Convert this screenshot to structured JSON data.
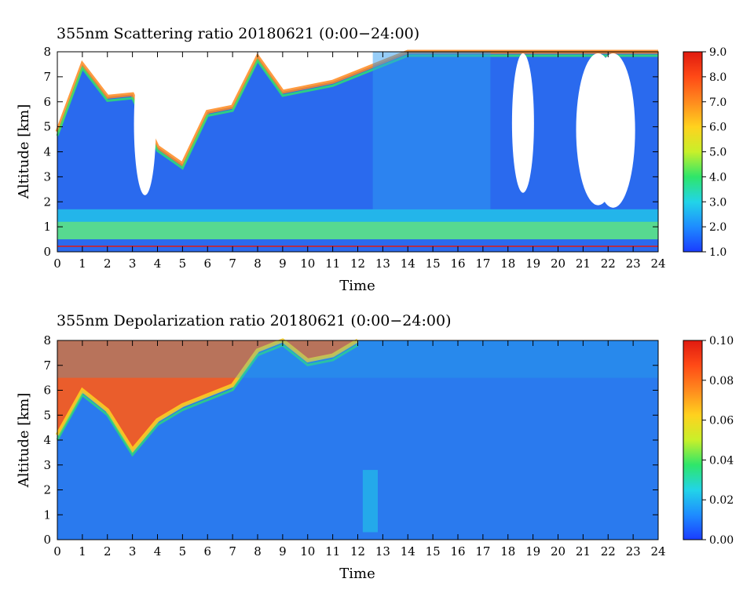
{
  "chart_data": [
    {
      "type": "heatmap",
      "title": "355nm Scattering ratio  20180621 (0:00−24:00)",
      "xlabel": "Time",
      "ylabel": "Altitude [km]",
      "xlim": [
        0,
        24
      ],
      "ylim": [
        0,
        8
      ],
      "x_ticks": [
        "0",
        "1",
        "2",
        "3",
        "4",
        "5",
        "6",
        "7",
        "8",
        "9",
        "10",
        "11",
        "12",
        "13",
        "14",
        "15",
        "16",
        "17",
        "18",
        "19",
        "20",
        "21",
        "22",
        "23",
        "24"
      ],
      "y_ticks": [
        "0",
        "1",
        "2",
        "3",
        "4",
        "5",
        "6",
        "7",
        "8"
      ],
      "colorbar": {
        "min": 1.0,
        "max": 9.0,
        "ticks": [
          "1.0",
          "2.0",
          "3.0",
          "4.0",
          "5.0",
          "6.0",
          "7.0",
          "8.0",
          "9.0"
        ],
        "colors": [
          "#1a3cff",
          "#1e8cff",
          "#22d4e8",
          "#2ee66a",
          "#c8f02a",
          "#ffd21e",
          "#ff8a1e",
          "#ff4a16",
          "#e01a10"
        ]
      },
      "features": {
        "boundary_layer_km": 0.5,
        "aerosol_layer_top_km": 1.7,
        "cloud_top_km": [
          4.8,
          7.5,
          6.2,
          6.3,
          4.2,
          3.5,
          5.6,
          5.8,
          7.8,
          6.4,
          6.6,
          6.8,
          7.2,
          7.6,
          8.0,
          8.0,
          8.0,
          8.0,
          8.0,
          8.0,
          8.0,
          8.0,
          8.0,
          8.0,
          8.0
        ]
      }
    },
    {
      "type": "heatmap",
      "title": "355nm Depolarization ratio  20180621 (0:00−24:00)",
      "xlabel": "Time",
      "ylabel": "Altitude [km]",
      "xlim": [
        0,
        24
      ],
      "ylim": [
        0,
        8
      ],
      "x_ticks": [
        "0",
        "1",
        "2",
        "3",
        "4",
        "5",
        "6",
        "7",
        "8",
        "9",
        "10",
        "11",
        "12",
        "13",
        "14",
        "15",
        "16",
        "17",
        "18",
        "19",
        "20",
        "21",
        "22",
        "23",
        "24"
      ],
      "y_ticks": [
        "0",
        "1",
        "2",
        "3",
        "4",
        "5",
        "6",
        "7",
        "8"
      ],
      "colorbar": {
        "min": 0.0,
        "max": 0.1,
        "ticks": [
          "0.00",
          "0.02",
          "0.04",
          "0.06",
          "0.08",
          "0.10"
        ],
        "colors": [
          "#1a3cff",
          "#1e8cff",
          "#22d4e8",
          "#2ee66a",
          "#c8f02a",
          "#ffd21e",
          "#ff8a1e",
          "#ff4a16",
          "#e01a10"
        ]
      },
      "features": {
        "high_depol_base_km": [
          4.2,
          6.0,
          5.2,
          3.6,
          4.8,
          5.4,
          5.8,
          6.2,
          7.6,
          8.0,
          7.2,
          7.4,
          8.0
        ]
      }
    }
  ]
}
